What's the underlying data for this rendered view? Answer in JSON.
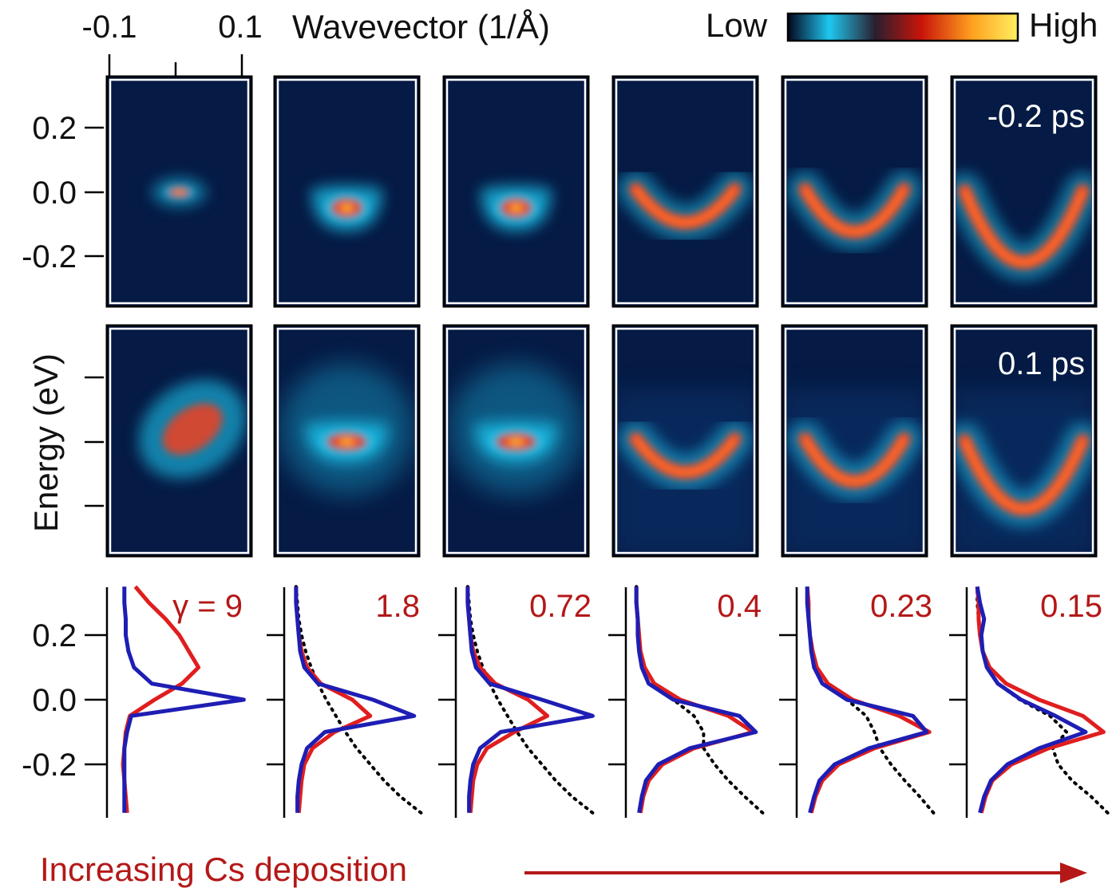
{
  "chart_data": [
    {
      "type": "heatmap",
      "description_source": "ARPES spectra grid, 2 rows x 6 columns",
      "xlabel": "Wavevector (1/Å)",
      "x_tick_labels": [
        "-0.1",
        "0.1"
      ],
      "xlim": [
        -0.1,
        0.1
      ],
      "ylabel": "Energy (eV)",
      "y_tick_labels": [
        "0.2",
        "0.0",
        "-0.2"
      ],
      "ylim": [
        -0.35,
        0.35
      ],
      "colorbar": {
        "low_label": "Low",
        "high_label": "High",
        "colors": [
          "#050520",
          "#1ec8f0",
          "#2a1e2e",
          "#d01e0a",
          "#ffa01e",
          "#fff060"
        ]
      },
      "colors": {
        "background": "#051a44",
        "band_low": "#1ec8f0",
        "band_high": "#ff3a14"
      },
      "rows": [
        {
          "delay_label": "-0.2 ps",
          "panels": [
            {
              "shape": "spot",
              "center_k": 0.0,
              "center_E": 0.0
            },
            {
              "shape": "pocket",
              "min_E": -0.05
            },
            {
              "shape": "pocket",
              "min_E": -0.05
            },
            {
              "shape": "v-band",
              "min_E": -0.1
            },
            {
              "shape": "v-band",
              "min_E": -0.13
            },
            {
              "shape": "v-band",
              "min_E": -0.23
            }
          ]
        },
        {
          "delay_label": "0.1 ps",
          "panels": [
            {
              "shape": "tilted-blob",
              "center_k": 0.02,
              "center_E": 0.04
            },
            {
              "shape": "pocket",
              "min_E": -0.05
            },
            {
              "shape": "pocket",
              "min_E": -0.05
            },
            {
              "shape": "v-band",
              "min_E": -0.1
            },
            {
              "shape": "v-band",
              "min_E": -0.13
            },
            {
              "shape": "v-band",
              "min_E": -0.22
            }
          ]
        }
      ]
    },
    {
      "type": "line",
      "description_source": "Energy distribution curves, 6 panels sharing the energy axis",
      "ylabel": "Energy (eV)",
      "y_tick_labels": [
        "0.2",
        "0.0",
        "-0.2"
      ],
      "ylim": [
        -0.35,
        0.35
      ],
      "energy_grid": [
        -0.35,
        -0.3,
        -0.25,
        -0.2,
        -0.15,
        -0.1,
        -0.05,
        0.0,
        0.05,
        0.1,
        0.15,
        0.2,
        0.25,
        0.3,
        0.35
      ],
      "series_colors": {
        "red": "#e01e1e",
        "blue": "#1e1eb4",
        "fit": "#000000"
      },
      "panels": [
        {
          "gamma_label": "γ = 9",
          "red": [
            0.1,
            0.09,
            0.08,
            0.07,
            0.08,
            0.09,
            0.12,
            0.3,
            0.5,
            0.62,
            0.55,
            0.48,
            0.38,
            0.26,
            0.16
          ],
          "blue": [
            0.08,
            0.08,
            0.08,
            0.08,
            0.08,
            0.1,
            0.13,
            0.95,
            0.28,
            0.15,
            0.11,
            0.09,
            0.09,
            0.08,
            0.08
          ],
          "fit": null
        },
        {
          "gamma_label": "1.8",
          "red": [
            0.06,
            0.07,
            0.08,
            0.1,
            0.16,
            0.32,
            0.58,
            0.45,
            0.22,
            0.12,
            0.08,
            0.06,
            0.05,
            0.04,
            0.04
          ],
          "blue": [
            0.05,
            0.05,
            0.06,
            0.08,
            0.12,
            0.25,
            0.9,
            0.6,
            0.2,
            0.1,
            0.07,
            0.06,
            0.05,
            0.04,
            0.04
          ],
          "fit": [
            0.95,
            0.8,
            0.68,
            0.58,
            0.48,
            0.4,
            0.33,
            0.26,
            0.2,
            0.15,
            0.11,
            0.08,
            0.06,
            0.05,
            0.04
          ]
        },
        {
          "gamma_label": "0.72",
          "red": [
            0.06,
            0.07,
            0.08,
            0.11,
            0.18,
            0.38,
            0.62,
            0.48,
            0.24,
            0.13,
            0.08,
            0.06,
            0.05,
            0.04,
            0.04
          ],
          "blue": [
            0.05,
            0.05,
            0.06,
            0.08,
            0.13,
            0.28,
            0.95,
            0.58,
            0.2,
            0.1,
            0.07,
            0.06,
            0.05,
            0.04,
            0.04
          ],
          "fit": [
            0.95,
            0.8,
            0.68,
            0.58,
            0.48,
            0.4,
            0.33,
            0.26,
            0.2,
            0.15,
            0.11,
            0.08,
            0.06,
            0.05,
            0.04
          ]
        },
        {
          "gamma_label": "0.4",
          "red": [
            0.06,
            0.08,
            0.12,
            0.22,
            0.45,
            0.88,
            0.7,
            0.35,
            0.16,
            0.09,
            0.06,
            0.05,
            0.04,
            0.03,
            0.03
          ],
          "blue": [
            0.05,
            0.07,
            0.1,
            0.19,
            0.42,
            0.9,
            0.78,
            0.3,
            0.12,
            0.07,
            0.05,
            0.04,
            0.04,
            0.03,
            0.03
          ],
          "fit": [
            0.95,
            0.82,
            0.7,
            0.6,
            0.52,
            0.52,
            0.45,
            0.3,
            0.16,
            0.09,
            0.06,
            0.05,
            0.04,
            0.03,
            0.03
          ]
        },
        {
          "gamma_label": "0.23",
          "red": [
            0.06,
            0.09,
            0.14,
            0.26,
            0.52,
            0.92,
            0.7,
            0.36,
            0.18,
            0.1,
            0.07,
            0.05,
            0.04,
            0.04,
            0.03
          ],
          "blue": [
            0.05,
            0.08,
            0.12,
            0.23,
            0.48,
            0.9,
            0.8,
            0.32,
            0.14,
            0.08,
            0.06,
            0.05,
            0.04,
            0.03,
            0.03
          ],
          "fit": [
            0.95,
            0.85,
            0.74,
            0.64,
            0.56,
            0.52,
            0.46,
            0.32,
            0.18,
            0.1,
            0.07,
            0.05,
            0.04,
            0.03,
            0.03
          ]
        },
        {
          "gamma_label": "0.15",
          "red": [
            0.06,
            0.09,
            0.14,
            0.28,
            0.55,
            0.95,
            0.8,
            0.48,
            0.24,
            0.12,
            0.07,
            0.05,
            0.04,
            0.04,
            0.03
          ],
          "blue": [
            0.05,
            0.08,
            0.13,
            0.25,
            0.48,
            0.82,
            0.6,
            0.35,
            0.18,
            0.1,
            0.07,
            0.06,
            0.08,
            0.05,
            0.03
          ],
          "fit": [
            0.98,
            0.86,
            0.72,
            0.62,
            0.58,
            0.68,
            0.56,
            0.34,
            0.18,
            0.1,
            0.07,
            0.05,
            0.04,
            0.03,
            0.03
          ]
        }
      ]
    }
  ],
  "footer": {
    "label": "Increasing Cs deposition"
  }
}
